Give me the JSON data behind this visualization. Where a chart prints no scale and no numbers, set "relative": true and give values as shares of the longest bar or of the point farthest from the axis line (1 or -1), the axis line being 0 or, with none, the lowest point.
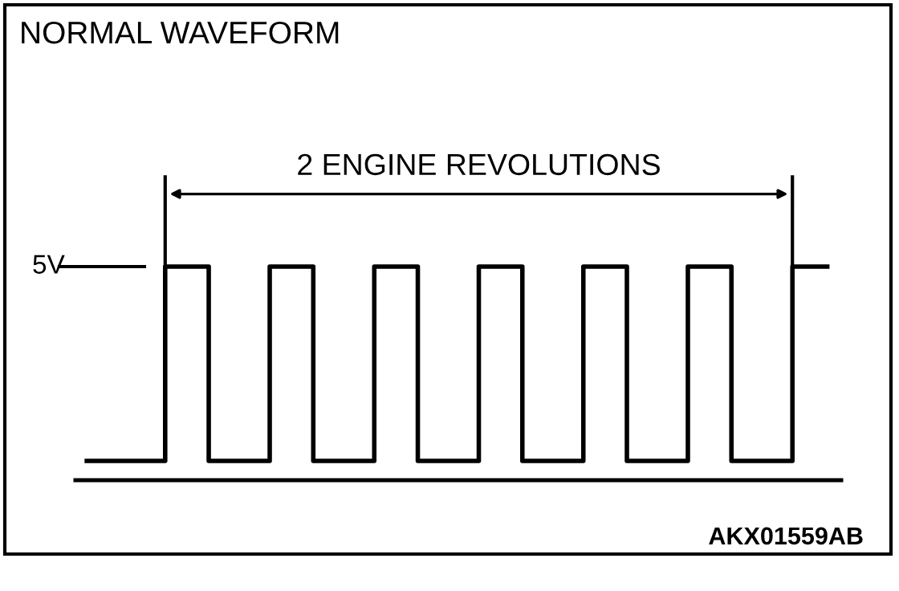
{
  "chart_data": {
    "type": "step",
    "title": "NORMAL WAVEFORM",
    "relative": true,
    "categories": [
      null,
      null,
      null,
      null,
      null,
      null,
      null,
      null,
      null,
      null,
      null,
      null,
      null,
      null,
      null,
      null,
      null,
      null,
      null,
      null,
      null,
      null,
      null,
      null,
      null,
      null,
      null,
      null,
      null,
      null,
      null,
      null,
      null,
      null,
      null,
      null,
      null,
      null,
      null,
      null,
      null,
      null,
      null,
      null,
      null,
      null,
      null,
      null,
      null,
      null,
      null,
      null,
      null,
      null,
      null,
      null,
      null,
      null,
      null,
      null,
      null,
      null,
      null,
      null,
      null,
      null,
      null,
      null,
      null,
      null,
      null,
      null,
      null,
      null,
      null,
      null,
      null,
      null,
      null,
      null,
      null,
      null,
      null,
      null,
      null,
      null
    ],
    "series": [
      {
        "color": "#000000",
        "values": [
          0.09,
          0.09,
          0.09,
          0.09,
          0.09,
          0.09,
          0.09,
          0.09,
          0.09,
          1,
          1,
          1,
          1,
          1,
          0.09,
          0.09,
          0.09,
          0.09,
          0.09,
          0.09,
          0.09,
          1,
          1,
          1,
          1,
          1,
          0.09,
          0.09,
          0.09,
          0.09,
          0.09,
          0.09,
          0.09,
          1,
          1,
          1,
          1,
          1,
          0.09,
          0.09,
          0.09,
          0.09,
          0.09,
          0.09,
          0.09,
          1,
          1,
          1,
          1,
          1,
          0.09,
          0.09,
          0.09,
          0.09,
          0.09,
          0.09,
          0.09,
          1,
          1,
          1,
          1,
          1,
          0.09,
          0.09,
          0.09,
          0.09,
          0.09,
          0.09,
          0.09,
          1,
          1,
          1,
          1,
          1,
          0.09,
          0.09,
          0.09,
          0.09,
          0.09,
          0.09,
          0.09,
          1,
          1,
          1,
          1,
          1
        ]
      }
    ],
    "annotations": [
      "5V",
      "2 ENGINE REVOLUTIONS",
      "AKX01559AB"
    ],
    "marker": "none",
    "line_style": "solid"
  }
}
